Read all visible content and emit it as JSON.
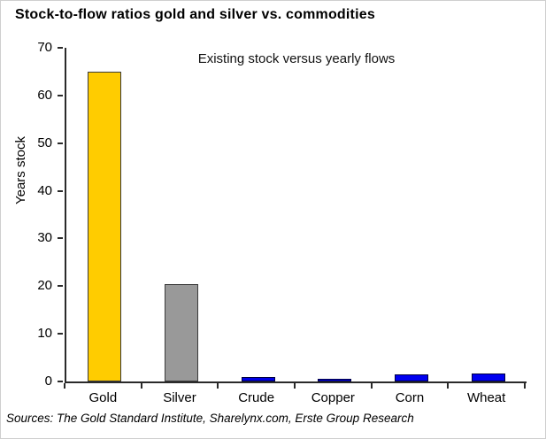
{
  "window": {
    "background": "#ffffff",
    "frame_color": "#cfcfcf"
  },
  "chart_data": {
    "type": "bar",
    "title": "Stock-to-flow ratios gold and silver vs. commodities",
    "subtitle": "Existing stock versus yearly flows",
    "xlabel": "",
    "ylabel": "Years stock",
    "categories": [
      "Gold",
      "Silver",
      "Crude",
      "Copper",
      "Corn",
      "Wheat"
    ],
    "values": [
      65,
      20.5,
      0.9,
      0.5,
      1.4,
      1.7
    ],
    "bar_colors": [
      "#FFCC00",
      "#999999",
      "#0000E6",
      "#0000E6",
      "#0000F0",
      "#0000F0"
    ],
    "bar_border_colors": [
      "#3a3a3a",
      "#3a3a3a",
      "#000040",
      "#000040",
      "#000040",
      "#000040"
    ],
    "ylim": [
      0,
      70
    ],
    "yticks": [
      0,
      10,
      20,
      30,
      40,
      50,
      60,
      70
    ],
    "grid": false,
    "legend": "none",
    "axis_color": "#2a2a2a",
    "source": "Sources: The Gold Standard Institute, Sharelynx.com, Erste Group Research"
  }
}
